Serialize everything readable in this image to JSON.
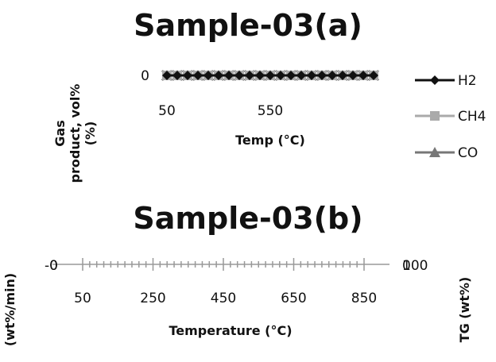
{
  "chart_data": [
    {
      "type": "line",
      "title": "Sample-03(a)",
      "xlabel": "Temp (°C)",
      "ylabel": "Gas product, vol% (%)",
      "y_tick_labels": [
        "0"
      ],
      "x_tick_labels": [
        "50",
        "550"
      ],
      "x": [
        50,
        100,
        150,
        200,
        250,
        300,
        350,
        400,
        450,
        500,
        550,
        600,
        650,
        700,
        750,
        800,
        850,
        900,
        950,
        1000,
        1050
      ],
      "series": [
        {
          "name": "H2",
          "values": [
            0,
            0,
            0,
            0,
            0,
            0,
            0,
            0,
            0,
            0,
            0,
            0,
            0,
            0,
            0,
            0,
            0,
            0,
            0,
            0,
            0
          ],
          "color": "#111111",
          "marker": "diamond"
        },
        {
          "name": "CH4",
          "values": [
            0,
            0,
            0,
            0,
            0,
            0,
            0,
            0,
            0,
            0,
            0,
            0,
            0,
            0,
            0,
            0,
            0,
            0,
            0,
            0,
            0
          ],
          "color": "#aaaaaa",
          "marker": "square"
        },
        {
          "name": "CO",
          "values": [
            0,
            0,
            0,
            0,
            0,
            0,
            0,
            0,
            0,
            0,
            0,
            0,
            0,
            0,
            0,
            0,
            0,
            0,
            0,
            0,
            0
          ],
          "color": "#777777",
          "marker": "triangle"
        },
        {
          "values": [
            0,
            0,
            0,
            0,
            0,
            0,
            0,
            0,
            0,
            0,
            0,
            0,
            0,
            0,
            0,
            0,
            0,
            0,
            0,
            0,
            0
          ],
          "color": "#555555",
          "marker": "x"
        }
      ],
      "legend": "right"
    },
    {
      "type": "line",
      "title": "Sample-03(b)",
      "xlabel": "Temperature (°C)",
      "ylabel": "(wt%/min)",
      "y2label": "TG (wt%)",
      "x_tick_labels": [
        "50",
        "250",
        "450",
        "650",
        "850"
      ],
      "xlim": [
        50,
        850
      ],
      "y_left_tick_labels": [
        "-0",
        "0"
      ],
      "y_right_tick_labels": [
        "0",
        "100"
      ],
      "series": []
    }
  ]
}
